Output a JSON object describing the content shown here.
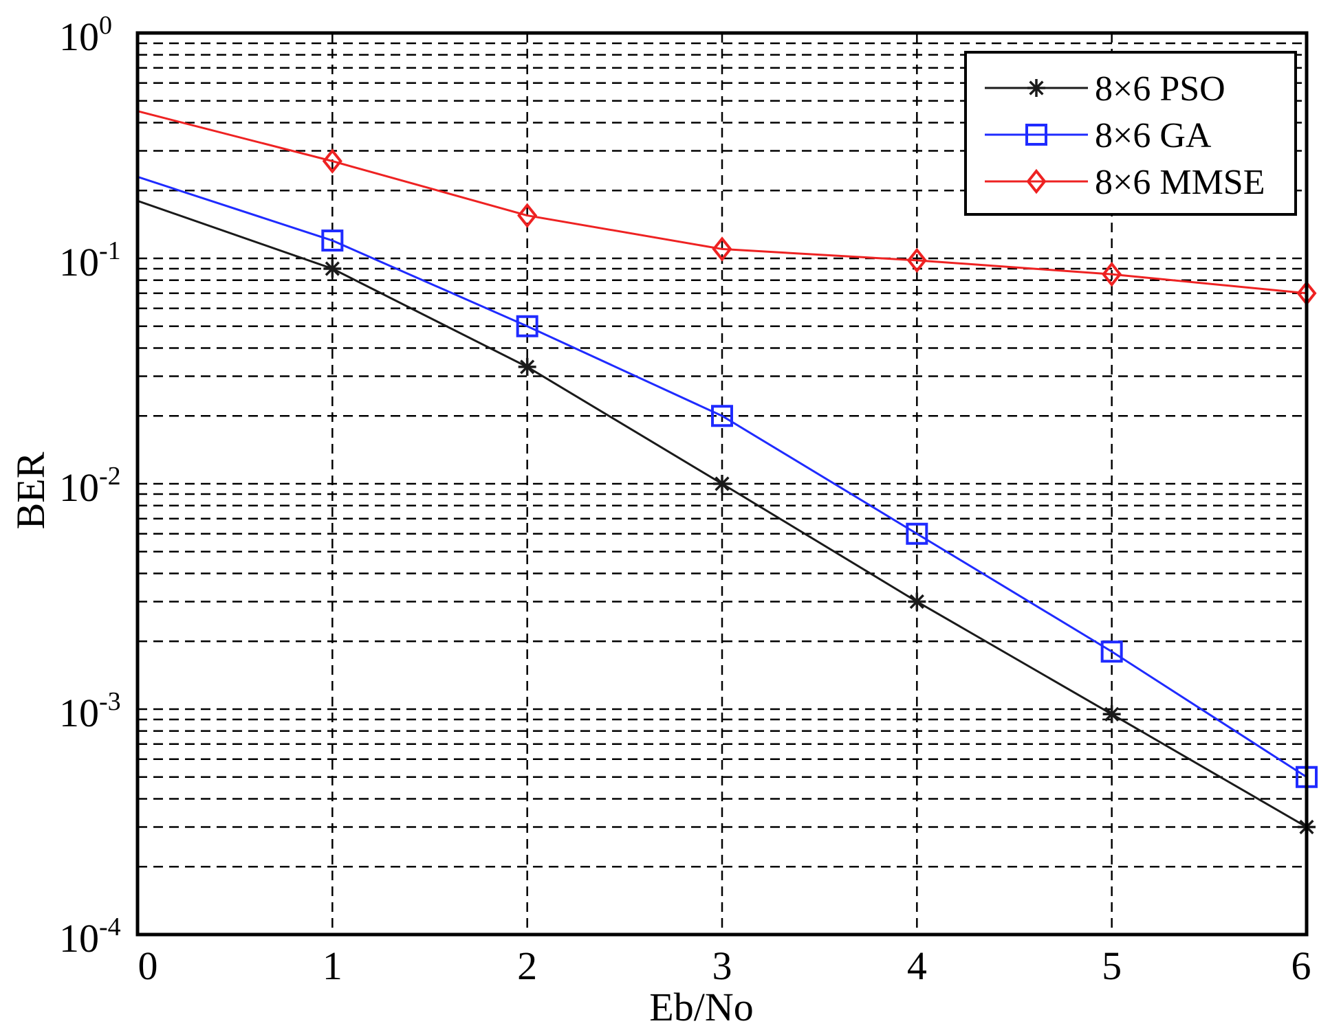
{
  "chart_data": {
    "type": "line",
    "title": "",
    "xlabel": "Eb/No",
    "ylabel": "BER",
    "xlim": [
      0,
      6
    ],
    "ylim": [
      0.0001,
      1
    ],
    "yscale": "log",
    "grid": true,
    "grid_style": "dashed",
    "legend_position": "top-right",
    "x_ticks": [
      "0",
      "1",
      "2",
      "3",
      "4",
      "5",
      "6"
    ],
    "y_ticks": [
      {
        "base": "10",
        "exp": "-4",
        "value": 0.0001
      },
      {
        "base": "10",
        "exp": "-3",
        "value": 0.001
      },
      {
        "base": "10",
        "exp": "-2",
        "value": 0.01
      },
      {
        "base": "10",
        "exp": "-1",
        "value": 0.1
      },
      {
        "base": "10",
        "exp": "0",
        "value": 1
      }
    ],
    "series": [
      {
        "name": "8×6 PSO",
        "color": "#1a1a1a",
        "marker": "star",
        "x": [
          0,
          1,
          2,
          3,
          4,
          5,
          6
        ],
        "y": [
          0.18,
          0.09,
          0.033,
          0.01,
          0.003,
          0.00095,
          0.0003
        ]
      },
      {
        "name": "8×6 GA",
        "color": "#1f2bff",
        "marker": "square",
        "x": [
          0,
          1,
          2,
          3,
          4,
          5,
          6
        ],
        "y": [
          0.23,
          0.12,
          0.05,
          0.02,
          0.006,
          0.0018,
          0.0005
        ]
      },
      {
        "name": "8×6 MMSE",
        "color": "#ee2222",
        "marker": "diamond",
        "x": [
          0,
          1,
          2,
          3,
          4,
          5,
          6
        ],
        "y": [
          0.45,
          0.27,
          0.155,
          0.11,
          0.098,
          0.085,
          0.07
        ]
      }
    ]
  }
}
